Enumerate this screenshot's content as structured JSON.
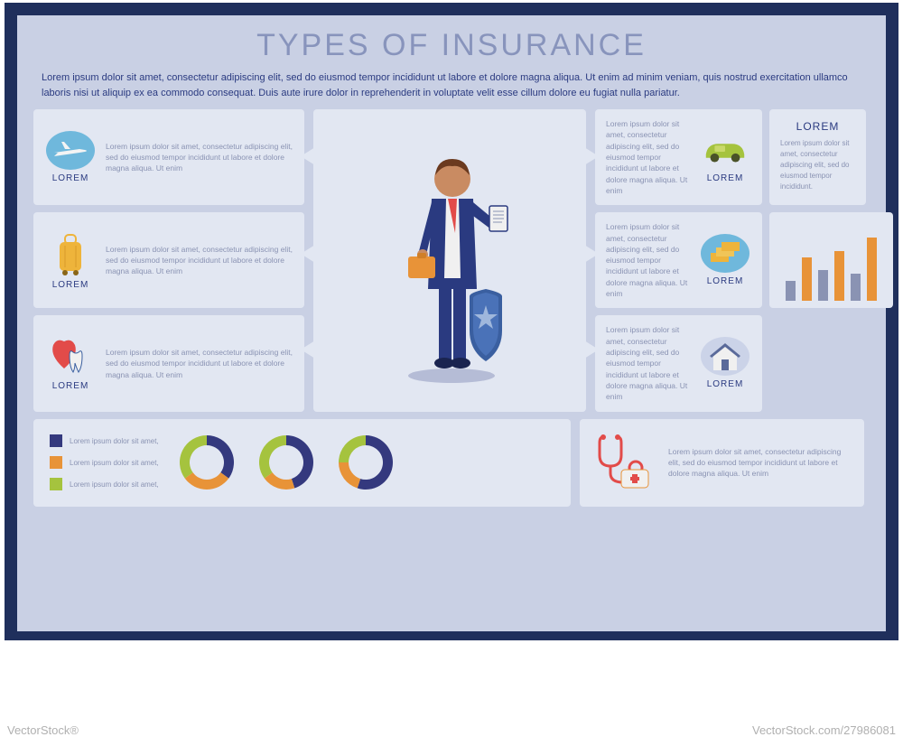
{
  "title": "TYPES OF INSURANCE",
  "intro": "Lorem ipsum dolor sit amet, consectetur adipiscing elit, sed do eiusmod tempor incididunt ut labore et dolore magna aliqua. Ut enim ad minim veniam, quis nostrud exercitation ullamco laboris nisi ut aliquip ex ea commodo consequat. Duis aute irure dolor in reprehenderit in voluptate velit esse cillum dolore eu fugiat nulla pariatur.",
  "colors": {
    "frame": "#1f2f5c",
    "panel": "#c9d0e4",
    "card": "#e2e7f2",
    "title": "#8894bc",
    "text_dark": "#2a3a80",
    "text_muted": "#8a93b3",
    "orange": "#e89338",
    "green": "#a5c33e",
    "navy": "#34397e",
    "sky": "#6fb8dc",
    "red": "#e24b49",
    "gold": "#eeb43b"
  },
  "cards": {
    "left": [
      {
        "label": "LOREM",
        "icon": "airplane",
        "bg": "#6fb8dc",
        "text": "Lorem ipsum dolor sit amet, consectetur adipiscing elit, sed do eiusmod tempor incididunt ut labore et dolore magna aliqua. Ut enim"
      },
      {
        "label": "LOREM",
        "icon": "suitcase",
        "bg": "#eeb43b",
        "text": "Lorem ipsum dolor sit amet, consectetur adipiscing elit, sed do eiusmod tempor incididunt ut labore et dolore magna aliqua. Ut enim"
      },
      {
        "label": "LOREM",
        "icon": "health",
        "bg": "#f0e6dc",
        "text": "Lorem ipsum dolor sit amet, consectetur adipiscing elit, sed do eiusmod tempor incididunt ut labore et dolore magna aliqua. Ut enim"
      }
    ],
    "right": [
      {
        "label": "LOREM",
        "icon": "car",
        "bg": "#a5c33e",
        "text": "Lorem ipsum dolor sit amet, consectetur adipiscing elit, sed do eiusmod tempor incididunt ut labore et dolore magna aliqua. Ut enim"
      },
      {
        "label": "LOREM",
        "icon": "money",
        "bg": "#6fb8dc",
        "text": "Lorem ipsum dolor sit amet, consectetur adipiscing elit, sed do eiusmod tempor incididunt ut labore et dolore magna aliqua. Ut enim"
      },
      {
        "label": "LOREM",
        "icon": "house",
        "bg": "#cbd3e8",
        "text": "Lorem ipsum dolor sit amet, consectetur adipiscing elit, sed do eiusmod tempor incididunt ut labore et dolore magna aliqua. Ut enim"
      }
    ]
  },
  "side": {
    "title": "LOREM",
    "text": "Lorem ipsum dolor sit amet, consectetur adipiscing elit, sed do eiusmod tempor incididunt."
  },
  "bar_chart": {
    "type": "bar",
    "values": [
      22,
      48,
      34,
      55,
      30,
      70
    ],
    "colors": [
      "#8a93b3",
      "#e89338",
      "#8a93b3",
      "#e89338",
      "#8a93b3",
      "#e89338"
    ],
    "max": 70
  },
  "legend": [
    {
      "color": "#34397e",
      "label": "Lorem ipsum dolor sit amet,"
    },
    {
      "color": "#e89338",
      "label": "Lorem ipsum dolor sit amet,"
    },
    {
      "color": "#a5c33e",
      "label": "Lorem ipsum dolor sit amet,"
    }
  ],
  "donuts": [
    {
      "segments": [
        {
          "color": "#34397e",
          "pct": 35
        },
        {
          "color": "#e89338",
          "pct": 30
        },
        {
          "color": "#a5c33e",
          "pct": 35
        }
      ]
    },
    {
      "segments": [
        {
          "color": "#34397e",
          "pct": 45
        },
        {
          "color": "#e89338",
          "pct": 20
        },
        {
          "color": "#a5c33e",
          "pct": 35
        }
      ]
    },
    {
      "segments": [
        {
          "color": "#34397e",
          "pct": 55
        },
        {
          "color": "#e89338",
          "pct": 20
        },
        {
          "color": "#a5c33e",
          "pct": 25
        }
      ]
    }
  ],
  "med_text": "Lorem ipsum dolor sit amet, consectetur adipiscing elit, sed do eiusmod tempor incididunt ut labore et dolore magna aliqua. Ut enim",
  "watermark_l": "VectorStock®",
  "watermark_r": "VectorStock.com/27986081"
}
